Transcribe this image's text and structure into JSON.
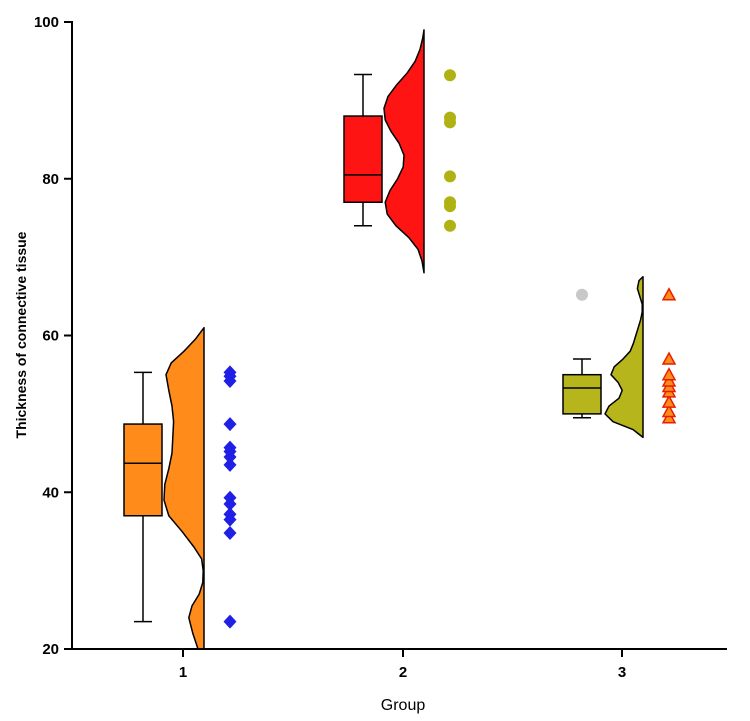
{
  "chart_data": {
    "type": "raincloud",
    "xlabel": "Group",
    "ylabel": "Thickness of connective tissue",
    "ylim": [
      20,
      100
    ],
    "yticks": [
      20,
      40,
      60,
      80,
      100
    ],
    "groups": [
      {
        "label": "1",
        "box": {
          "min": 23.5,
          "q1": 37,
          "median": 43.7,
          "q3": 48.7,
          "max": 55.3
        },
        "box_color": "#ff8c1a",
        "cloud_color": "#ff8c1a",
        "cloud_range": [
          20,
          61
        ],
        "density": [
          [
            20.0,
            0.15
          ],
          [
            22.0,
            0.28
          ],
          [
            24.0,
            0.38
          ],
          [
            25.5,
            0.3
          ],
          [
            27.0,
            0.12
          ],
          [
            28.5,
            0.03
          ],
          [
            30.0,
            0.02
          ],
          [
            31.5,
            0.06
          ],
          [
            33.0,
            0.25
          ],
          [
            35.0,
            0.55
          ],
          [
            37.0,
            0.88
          ],
          [
            39.0,
            1.0
          ],
          [
            41.0,
            0.98
          ],
          [
            43.0,
            0.88
          ],
          [
            45.0,
            0.8
          ],
          [
            47.0,
            0.78
          ],
          [
            49.0,
            0.76
          ],
          [
            51.0,
            0.8
          ],
          [
            53.0,
            0.88
          ],
          [
            55.0,
            0.95
          ],
          [
            56.5,
            0.82
          ],
          [
            58.0,
            0.5
          ],
          [
            59.5,
            0.22
          ],
          [
            61.0,
            0.0
          ]
        ],
        "points": [
          23.5,
          34.8,
          36.5,
          37.2,
          38.5,
          39.3,
          43.5,
          44.5,
          45.2,
          45.7,
          48.7,
          54.2,
          54.8,
          55.3
        ],
        "marker": "diamond",
        "marker_color": "#1f1fe6"
      },
      {
        "label": "2",
        "box": {
          "min": 74,
          "q1": 77,
          "median": 80.5,
          "q3": 88,
          "max": 93.3
        },
        "box_color": "#ff1414",
        "cloud_color": "#ff1414",
        "cloud_range": [
          68,
          99
        ],
        "density": [
          [
            68.0,
            0.0
          ],
          [
            69.5,
            0.05
          ],
          [
            71.0,
            0.15
          ],
          [
            72.5,
            0.38
          ],
          [
            74.0,
            0.7
          ],
          [
            75.5,
            0.92
          ],
          [
            77.0,
            0.97
          ],
          [
            78.5,
            0.85
          ],
          [
            80.0,
            0.66
          ],
          [
            81.5,
            0.52
          ],
          [
            83.0,
            0.5
          ],
          [
            84.5,
            0.62
          ],
          [
            86.0,
            0.82
          ],
          [
            87.5,
            0.97
          ],
          [
            89.0,
            1.0
          ],
          [
            90.5,
            0.9
          ],
          [
            92.0,
            0.68
          ],
          [
            93.5,
            0.42
          ],
          [
            95.0,
            0.22
          ],
          [
            96.5,
            0.1
          ],
          [
            98.0,
            0.03
          ],
          [
            99.0,
            0.0
          ]
        ],
        "points": [
          74.0,
          76.5,
          77.0,
          80.3,
          87.2,
          87.8,
          93.2
        ],
        "marker": "circle",
        "marker_color": "#b0b214"
      },
      {
        "label": "3",
        "box": {
          "min": 49.5,
          "q1": 50,
          "median": 53.3,
          "q3": 55,
          "max": 57
        },
        "box_color": "#b7b51c",
        "cloud_color": "#b7b51c",
        "cloud_range": [
          47,
          67.5
        ],
        "outliers": [
          65.2
        ],
        "outlier_color": "#c8c8c8",
        "density": [
          [
            47.0,
            0.0
          ],
          [
            48.0,
            0.25
          ],
          [
            49.0,
            0.75
          ],
          [
            50.0,
            0.95
          ],
          [
            51.0,
            0.85
          ],
          [
            52.0,
            0.6
          ],
          [
            53.0,
            0.52
          ],
          [
            54.0,
            0.62
          ],
          [
            55.0,
            0.8
          ],
          [
            56.0,
            0.72
          ],
          [
            57.0,
            0.5
          ],
          [
            58.0,
            0.32
          ],
          [
            59.0,
            0.24
          ],
          [
            60.0,
            0.18
          ],
          [
            61.0,
            0.12
          ],
          [
            62.0,
            0.06
          ],
          [
            63.0,
            0.02
          ],
          [
            64.0,
            0.02
          ],
          [
            65.0,
            0.08
          ],
          [
            66.0,
            0.14
          ],
          [
            67.0,
            0.1
          ],
          [
            67.5,
            0.0
          ]
        ],
        "points": [
          49.5,
          50.3,
          51.5,
          52.8,
          53.5,
          54.2,
          55.0,
          57.0,
          65.2
        ],
        "marker": "triangle",
        "marker_color": "#ff8c1a",
        "marker_stroke": "#e61f00"
      }
    ]
  }
}
